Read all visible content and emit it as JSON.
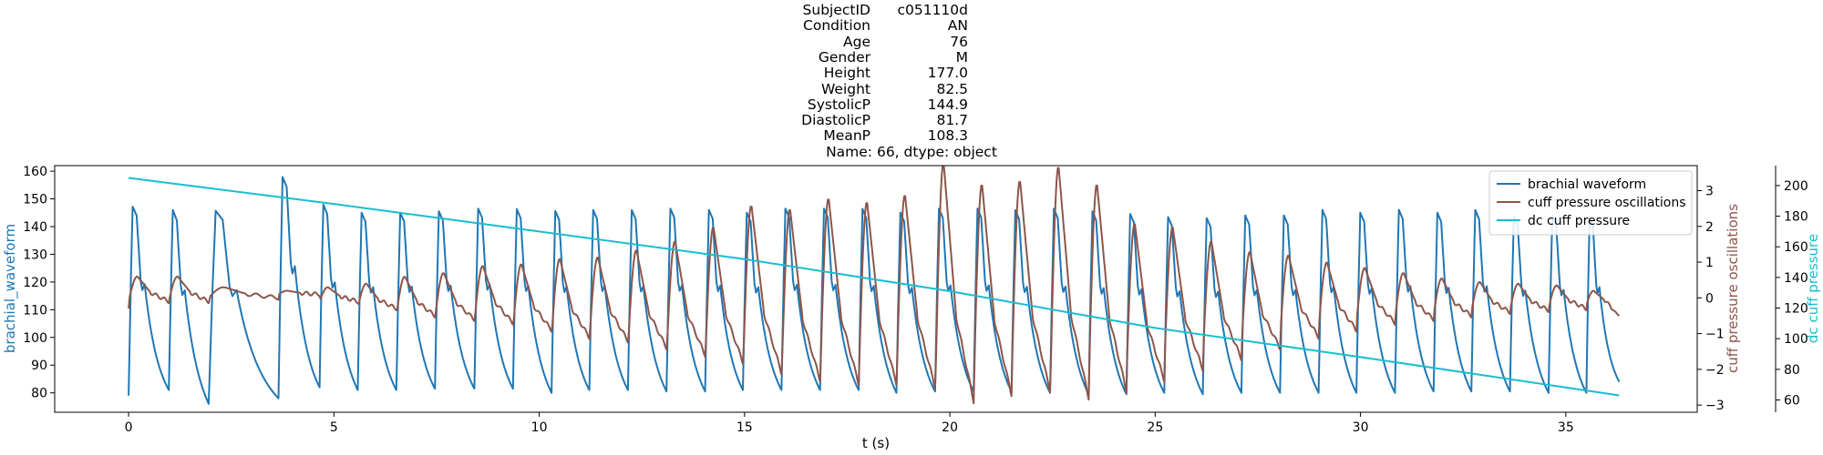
{
  "title": {
    "rows": [
      {
        "key": "SubjectID",
        "value": "c051110d"
      },
      {
        "key": "Condition",
        "value": "AN"
      },
      {
        "key": "Age",
        "value": "76"
      },
      {
        "key": "Gender",
        "value": "M"
      },
      {
        "key": "Height",
        "value": "177.0"
      },
      {
        "key": "Weight",
        "value": "82.5"
      },
      {
        "key": "SystolicP",
        "value": "144.9"
      },
      {
        "key": "DiastolicP",
        "value": "81.7"
      },
      {
        "key": "MeanP",
        "value": "108.3"
      }
    ],
    "footer": "Name: 66, dtype: object"
  },
  "chart_data": {
    "type": "line",
    "xlabel": "t (s)",
    "xlim": [
      -1.8,
      38.2
    ],
    "xticks": [
      0,
      5,
      10,
      15,
      20,
      25,
      30,
      35
    ],
    "duration": 36.3,
    "colors": {
      "brachial": "#1f77b4",
      "cuff": "#8c564b",
      "dc": "#17becf"
    },
    "axes": {
      "left": {
        "label": "brachial_waveform",
        "ylim": [
          73,
          162
        ],
        "ticks": [
          80,
          90,
          100,
          110,
          120,
          130,
          140,
          150,
          160
        ],
        "color": "#1f77b4"
      },
      "right": {
        "label": "cuff pressure oscillations",
        "ylim": [
          -3.2,
          3.7
        ],
        "ticks": [
          -3,
          -2,
          -1,
          0,
          1,
          2,
          3
        ],
        "color": "#8c564b"
      },
      "right2": {
        "label": "dc cuff pressure",
        "ylim": [
          52,
          213
        ],
        "ticks": [
          60,
          80,
          100,
          120,
          140,
          160,
          180,
          200
        ],
        "color": "#17becf"
      }
    },
    "legend": {
      "position": "top-right",
      "entries": [
        {
          "label": "brachial waveform",
          "color": "#1f77b4"
        },
        {
          "label": "cuff pressure oscillations",
          "color": "#8c564b"
        },
        {
          "label": "dc cuff pressure",
          "color": "#17becf"
        }
      ]
    },
    "series": [
      {
        "name": "brachial waveform",
        "axis": "left",
        "beat_onsets": [
          0,
          0.98,
          1.95,
          3.65,
          4.65,
          5.58,
          6.52,
          7.46,
          8.42,
          9.36,
          10.3,
          11.22,
          12.16,
          13.1,
          14.04,
          14.96,
          15.9,
          16.84,
          17.78,
          18.7,
          19.64,
          20.58,
          21.5,
          22.44,
          23.38,
          24.3,
          25.22,
          26.16,
          27.1,
          28.04,
          28.98,
          29.9,
          30.84,
          31.78,
          32.7,
          33.64,
          34.58,
          35.5
        ],
        "beat_peaks": [
          147,
          146.5,
          145.5,
          157.5,
          148,
          145,
          145,
          145.5,
          146.5,
          146.5,
          145.5,
          146,
          146,
          146.5,
          146,
          145,
          146.5,
          146.5,
          146.5,
          145,
          146.5,
          146.5,
          146,
          146.5,
          145.5,
          144.5,
          143.5,
          143,
          144,
          144,
          146,
          145,
          146,
          145,
          146,
          143.5,
          144,
          143
        ],
        "beat_troughs": [
          79,
          81,
          76,
          78,
          82,
          81,
          81,
          81.5,
          81.5,
          81.5,
          80,
          81,
          81,
          80.5,
          80.5,
          81,
          81,
          81,
          81,
          80,
          80.5,
          80.5,
          80.5,
          80,
          79.5,
          79.5,
          80,
          79.5,
          80,
          80,
          80,
          80,
          80,
          80.5,
          80.5,
          80.5,
          80,
          80
        ],
        "end_value": 84
      },
      {
        "name": "cuff pressure oscillations",
        "axis": "right",
        "beat_peaks": [
          0.6,
          0.6,
          0.3,
          0.2,
          0.3,
          0.4,
          0.6,
          0.7,
          0.9,
          0.95,
          1.1,
          1.15,
          1.35,
          1.6,
          2.0,
          2.6,
          2.5,
          2.8,
          2.7,
          2.9,
          3.8,
          3.2,
          3.3,
          3.7,
          3.2,
          2.1,
          2.0,
          1.6,
          1.3,
          1.2,
          1.0,
          0.85,
          0.7,
          0.55,
          0.45,
          0.4,
          0.35,
          0.2
        ],
        "beat_troughs": [
          -0.1,
          -0.1,
          0.0,
          0.1,
          -0.1,
          -0.3,
          -0.5,
          -0.6,
          -0.7,
          -0.9,
          -1.1,
          -1.2,
          -1.4,
          -1.6,
          -1.8,
          -2.1,
          -2.3,
          -2.4,
          -2.4,
          -2.5,
          -2.9,
          -2.7,
          -2.6,
          -2.8,
          -2.6,
          -2.3,
          -2.0,
          -1.7,
          -1.4,
          -1.1,
          -0.9,
          -0.7,
          -0.6,
          -0.5,
          -0.4,
          -0.35,
          -0.3,
          -0.2
        ],
        "start_value": -0.3,
        "end_value": -0.5
      },
      {
        "name": "dc cuff pressure",
        "axis": "right2",
        "x": [
          0,
          5,
          10,
          15,
          20,
          25,
          30,
          36.3
        ],
        "y": [
          205,
          188,
          170,
          152,
          131,
          107,
          88,
          63
        ]
      }
    ]
  }
}
